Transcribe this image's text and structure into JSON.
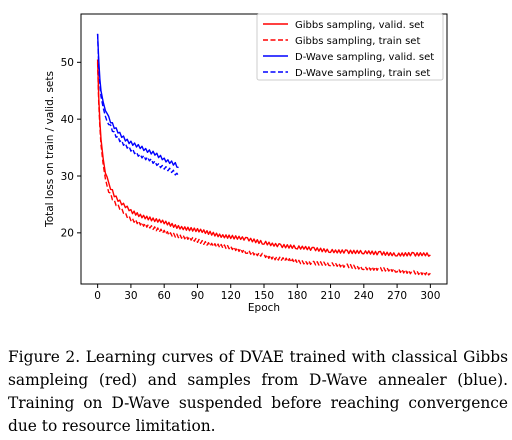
{
  "chart_data": {
    "type": "line",
    "xlabel": "Epoch",
    "ylabel": "Total loss on train / valid. sets",
    "xlim": [
      -15,
      315
    ],
    "ylim": [
      11,
      58.5
    ],
    "xticks": [
      0,
      30,
      60,
      90,
      120,
      150,
      180,
      210,
      240,
      270,
      300
    ],
    "yticks": [
      20,
      30,
      40,
      50
    ],
    "grid": false,
    "legend_position": "top-right",
    "series": [
      {
        "name": "Gibbs sampling, valid. set",
        "color": "#ff0000",
        "dash": "solid",
        "x": [
          0,
          1,
          2,
          3,
          5,
          7,
          10,
          15,
          20,
          25,
          30,
          40,
          50,
          60,
          70,
          80,
          90,
          100,
          110,
          120,
          135,
          150,
          165,
          180,
          195,
          210,
          225,
          240,
          255,
          270,
          285,
          300
        ],
        "y": [
          50.5,
          44,
          39.5,
          36.5,
          33,
          30.5,
          28.5,
          26.7,
          25.5,
          24.6,
          23.8,
          23,
          22.3,
          21.8,
          21.2,
          20.8,
          20.4,
          20,
          19.6,
          19.3,
          18.8,
          18.3,
          17.8,
          17.4,
          17.1,
          16.9,
          16.7,
          16.5,
          16.4,
          16.3,
          16.2,
          16.1
        ]
      },
      {
        "name": "Gibbs sampling, train set",
        "color": "#ff0000",
        "dash": "dashed",
        "x": [
          0,
          1,
          2,
          3,
          5,
          7,
          10,
          15,
          20,
          25,
          30,
          40,
          50,
          60,
          70,
          80,
          90,
          100,
          110,
          120,
          135,
          150,
          160,
          170,
          180,
          195,
          210,
          225,
          240,
          255,
          270,
          285,
          300
        ],
        "y": [
          50,
          43,
          38.5,
          35.5,
          32,
          29.5,
          27.5,
          25.5,
          24.3,
          23.3,
          22.5,
          21.5,
          20.8,
          20.2,
          19.6,
          19.1,
          18.6,
          18.1,
          17.7,
          17.3,
          16.7,
          16.1,
          15.5,
          15.2,
          15,
          14.7,
          14.4,
          14.2,
          13.9,
          13.6,
          13.3,
          13.1,
          12.9
        ]
      },
      {
        "name": "D-Wave sampling, valid. set",
        "color": "#0000ff",
        "dash": "solid",
        "x": [
          0,
          1,
          2,
          3,
          5,
          7,
          10,
          15,
          20,
          25,
          30,
          35,
          40,
          45,
          50,
          55,
          60,
          65,
          70,
          73
        ],
        "y": [
          55,
          50.5,
          47,
          45,
          43,
          41.5,
          40.2,
          38.5,
          37.4,
          36.5,
          35.8,
          35.3,
          35,
          34.5,
          34,
          33.5,
          33,
          32.5,
          32,
          31.5
        ]
      },
      {
        "name": "D-Wave sampling, train set",
        "color": "#0000ff",
        "dash": "dashed",
        "x": [
          0,
          1,
          2,
          3,
          5,
          7,
          10,
          15,
          20,
          25,
          30,
          35,
          40,
          45,
          50,
          55,
          60,
          65,
          70,
          73
        ],
        "y": [
          55,
          49.5,
          46,
          44,
          42,
          40.5,
          39.2,
          37.5,
          36.4,
          35.4,
          34.6,
          34,
          33.5,
          33,
          32.5,
          32,
          31.5,
          31,
          30.5,
          30
        ]
      }
    ]
  },
  "caption": "Figure 2.  Learning curves of DVAE trained with classical Gibbs sampleing (red) and samples from D-Wave annealer (blue).  Training on D-Wave suspended before reaching convergence due to resource limitation."
}
